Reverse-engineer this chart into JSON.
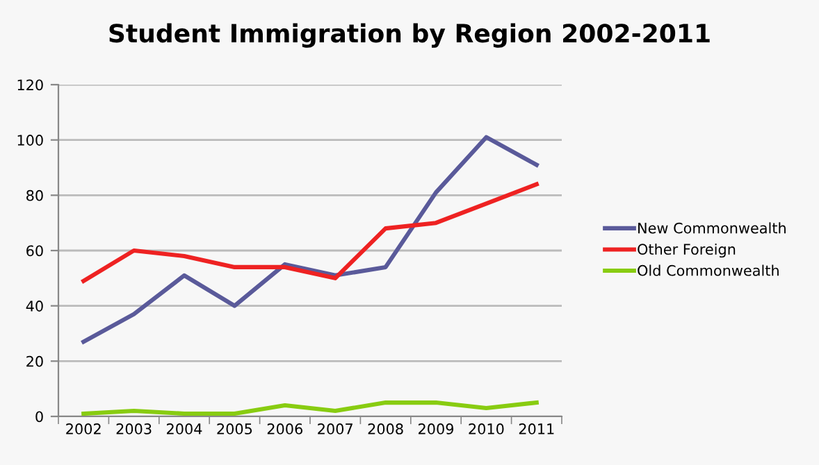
{
  "chart_data": {
    "type": "line",
    "title": "Student Immigration by Region 2002-2011",
    "categories": [
      "2002",
      "2003",
      "2004",
      "2005",
      "2006",
      "2007",
      "2008",
      "2009",
      "2010",
      "2011"
    ],
    "series": [
      {
        "name": "New Commonwealth",
        "color": "#5a5a9a",
        "values": [
          27,
          37,
          51,
          40,
          55,
          51,
          54,
          81,
          101,
          91
        ]
      },
      {
        "name": "Other Foreign",
        "color": "#ee2222",
        "values": [
          49,
          60,
          58,
          54,
          54,
          50,
          68,
          70,
          77,
          84
        ]
      },
      {
        "name": "Old Commonwealth",
        "color": "#88cc11",
        "values": [
          1,
          2,
          1,
          1,
          4,
          2,
          5,
          5,
          3,
          5
        ]
      }
    ],
    "ylim": [
      0,
      120
    ],
    "yticks": [
      0,
      20,
      40,
      60,
      80,
      100,
      120
    ],
    "grid": "y",
    "legend": "right",
    "marker": "none",
    "line_style": "solid"
  }
}
